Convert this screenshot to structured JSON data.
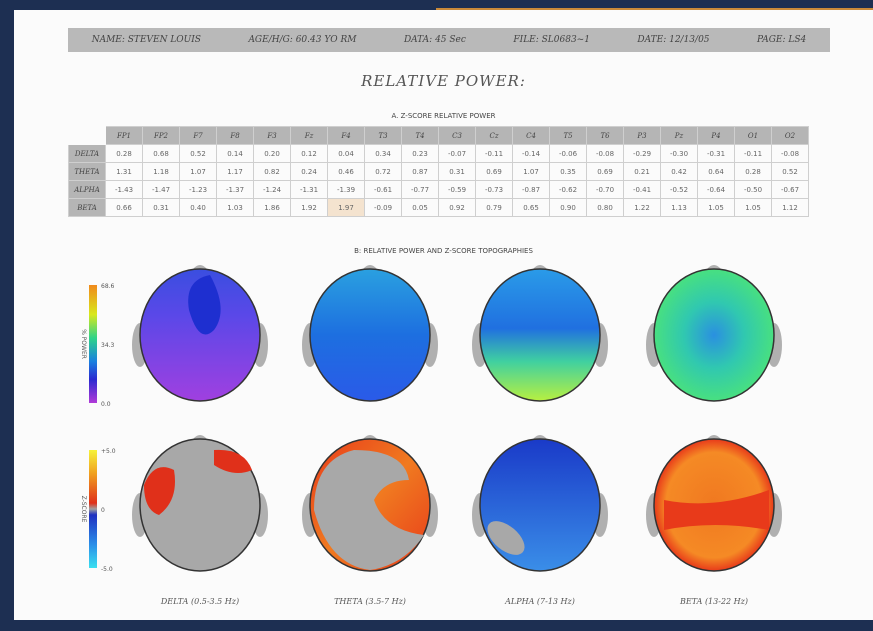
{
  "header": {
    "fields": [
      "NAME: STEVEN LOUIS",
      "AGE/H/G: 60.43 YO RM",
      "DATA: 45 Sec",
      "FILE: SL0683~1",
      "DATE: 12/13/05",
      "PAGE: LS4"
    ]
  },
  "title": "RELATIVE POWER:",
  "table": {
    "caption": "A. Z-SCORE RELATIVE POWER",
    "columns": [
      "FP1",
      "FP2",
      "F7",
      "F8",
      "F3",
      "Fz",
      "F4",
      "T3",
      "T4",
      "C3",
      "Cz",
      "C4",
      "T5",
      "T6",
      "P3",
      "Pz",
      "P4",
      "O1",
      "O2"
    ],
    "rows": [
      {
        "label": "DELTA",
        "values": [
          "0.28",
          "0.68",
          "0.52",
          "0.14",
          "0.20",
          "0.12",
          "0.04",
          "0.34",
          "0.23",
          "-0.07",
          "-0.11",
          "-0.14",
          "-0.06",
          "-0.08",
          "-0.29",
          "-0.30",
          "-0.31",
          "-0.11",
          "-0.08"
        ]
      },
      {
        "label": "THETA",
        "values": [
          "1.31",
          "1.18",
          "1.07",
          "1.17",
          "0.82",
          "0.24",
          "0.46",
          "0.72",
          "0.87",
          "0.31",
          "0.69",
          "1.07",
          "0.35",
          "0.69",
          "0.21",
          "0.42",
          "0.64",
          "0.28",
          "0.52"
        ]
      },
      {
        "label": "ALPHA",
        "values": [
          "-1.43",
          "-1.47",
          "-1.23",
          "-1.37",
          "-1.24",
          "-1.31",
          "-1.39",
          "-0.61",
          "-0.77",
          "-0.59",
          "-0.73",
          "-0.87",
          "-0.62",
          "-0.70",
          "-0.41",
          "-0.52",
          "-0.64",
          "-0.50",
          "-0.67"
        ]
      },
      {
        "label": "BETA",
        "values": [
          "0.66",
          "0.31",
          "0.40",
          "1.03",
          "1.86",
          "1.92",
          "1.97",
          "-0.09",
          "0.05",
          "0.92",
          "0.79",
          "0.65",
          "0.90",
          "0.80",
          "1.22",
          "1.13",
          "1.05",
          "1.05",
          "1.12"
        ]
      }
    ]
  },
  "topographies": {
    "caption": "B: RELATIVE POWER AND Z-SCORE TOPOGRAPHIES",
    "colorbars": [
      {
        "label": "% POWER",
        "ticks": [
          "68.6",
          "34.3",
          "0.0"
        ]
      },
      {
        "label": "Z-SCORE",
        "ticks": [
          "+5.0",
          "0",
          "-5.0"
        ]
      }
    ],
    "bands": [
      "DELTA (0.5-3.5 Hz)",
      "THETA (3.5-7 Hz)",
      "ALPHA (7-13 Hz)",
      "BETA (13-22 Hz)"
    ]
  }
}
